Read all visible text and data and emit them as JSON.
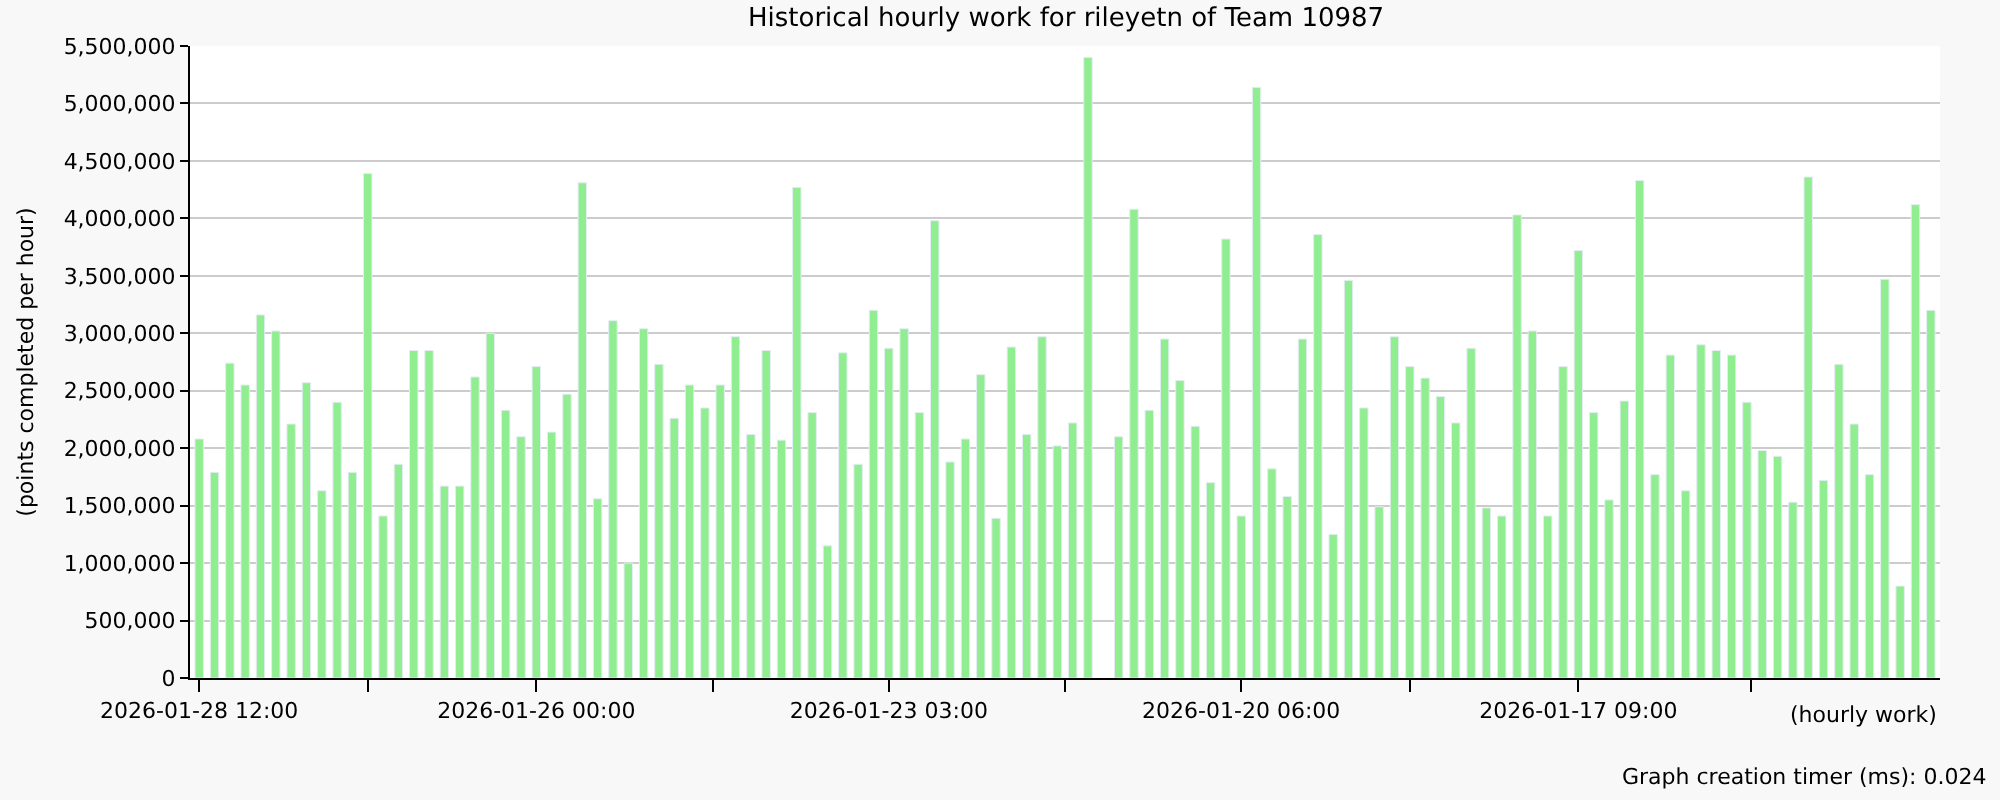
{
  "chart_data": {
    "type": "bar",
    "title": "Historical hourly work for rileyetn of Team 10987",
    "xlabel": "(hourly work)",
    "ylabel": "(points completed per hour)",
    "annotations": [
      "Graph creation timer (ms): 0.024"
    ],
    "categories": [
      "2026-01-28 12:00",
      null,
      null,
      null,
      null,
      null,
      null,
      null,
      null,
      null,
      null,
      null,
      null,
      null,
      null,
      null,
      null,
      null,
      null,
      null,
      null,
      null,
      "2026-01-26 00:00",
      null,
      null,
      null,
      null,
      null,
      null,
      null,
      null,
      null,
      null,
      null,
      null,
      null,
      null,
      null,
      null,
      null,
      null,
      null,
      null,
      null,
      null,
      "2026-01-23 03:00",
      null,
      null,
      null,
      null,
      null,
      null,
      null,
      null,
      null,
      null,
      null,
      null,
      null,
      null,
      null,
      null,
      null,
      null,
      null,
      null,
      null,
      null,
      "2026-01-20 06:00",
      null,
      null,
      null,
      null,
      null,
      null,
      null,
      null,
      null,
      null,
      null,
      null,
      null,
      null,
      null,
      null,
      null,
      null,
      null,
      null,
      null,
      "2026-01-17 09:00",
      null,
      null,
      null,
      null,
      null,
      null,
      null,
      null,
      null,
      null,
      null,
      null,
      null,
      null,
      null,
      null,
      null,
      null,
      null,
      null,
      null,
      null,
      null
    ],
    "values": [
      2080000,
      1790000,
      2740000,
      2550000,
      3160000,
      3020000,
      2210000,
      2570000,
      1630000,
      2400000,
      1790000,
      4390000,
      1410000,
      1860000,
      2850000,
      2850000,
      1670000,
      1670000,
      2620000,
      3000000,
      2330000,
      2100000,
      2710000,
      2140000,
      2470000,
      4310000,
      1560000,
      3110000,
      1000000,
      3040000,
      2730000,
      2260000,
      2550000,
      2350000,
      2550000,
      2970000,
      2120000,
      2850000,
      2070000,
      4270000,
      2310000,
      1150000,
      2830000,
      1860000,
      3200000,
      2870000,
      3040000,
      2310000,
      3980000,
      1880000,
      2080000,
      2640000,
      1390000,
      2880000,
      2120000,
      2970000,
      2020000,
      2220000,
      5400000,
      null,
      2100000,
      4080000,
      2330000,
      2950000,
      2590000,
      2190000,
      1700000,
      3820000,
      1410000,
      5140000,
      1820000,
      1580000,
      2950000,
      3860000,
      1250000,
      3460000,
      2350000,
      1490000,
      2970000,
      2710000,
      2610000,
      2450000,
      2220000,
      2870000,
      1480000,
      1410000,
      4030000,
      3020000,
      1410000,
      2710000,
      3720000,
      2310000,
      1550000,
      2410000,
      4330000,
      1770000,
      2810000,
      1630000,
      2900000,
      2850000,
      2810000,
      2400000,
      1980000,
      1930000,
      1530000,
      4360000,
      1720000,
      2730000,
      2210000,
      1770000,
      3470000,
      800000,
      4120000,
      3200000
    ],
    "color": "#90ee90",
    "ylim": [
      0,
      5500000
    ],
    "yticks": [
      {
        "value": 0,
        "label": "0"
      },
      {
        "value": 500000,
        "label": "500,000"
      },
      {
        "value": 1000000,
        "label": "1,000,000"
      },
      {
        "value": 1500000,
        "label": "1,500,000"
      },
      {
        "value": 2000000,
        "label": "2,000,000"
      },
      {
        "value": 2500000,
        "label": "2,500,000"
      },
      {
        "value": 3000000,
        "label": "3,000,000"
      },
      {
        "value": 3500000,
        "label": "3,500,000"
      },
      {
        "value": 4000000,
        "label": "4,000,000"
      },
      {
        "value": 4500000,
        "label": "4,500,000"
      },
      {
        "value": 5000000,
        "label": "5,000,000"
      },
      {
        "value": 5500000,
        "label": "5,500,000"
      }
    ],
    "grid": "y"
  }
}
